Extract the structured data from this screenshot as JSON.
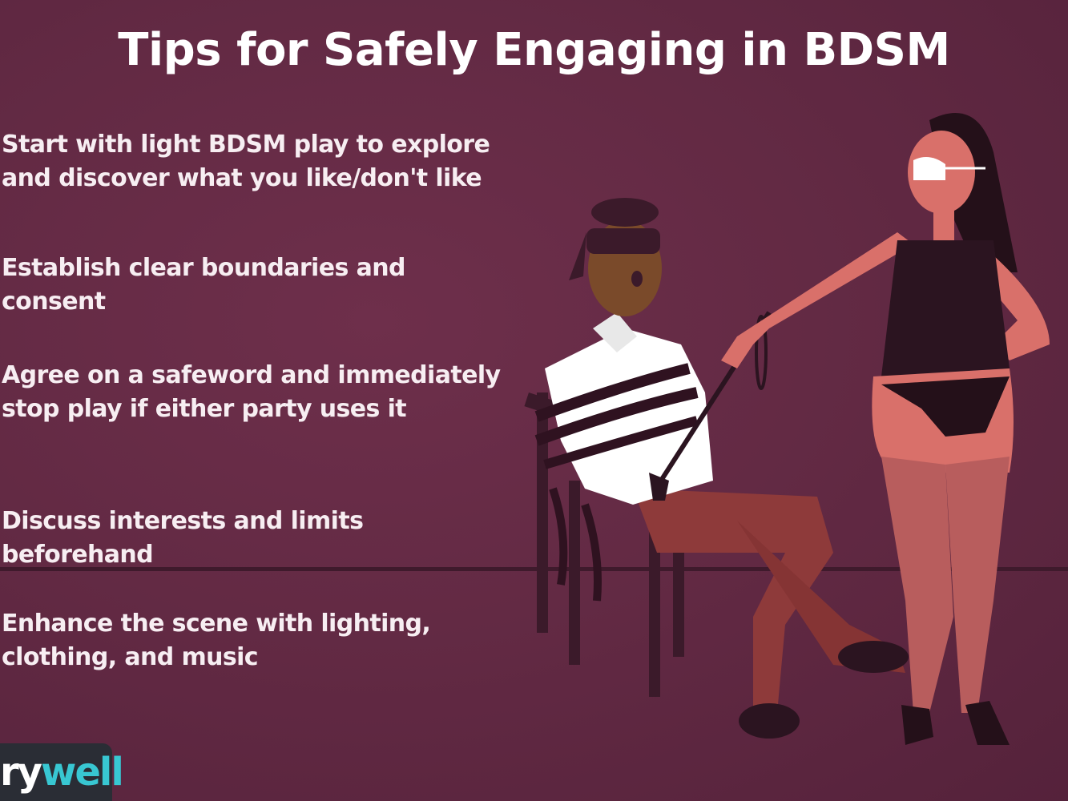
{
  "title": "Tips for Safely Engaging in BDSM",
  "tips": [
    {
      "line1": "Start with light BDSM play to explore",
      "line2": "and discover what you like/don't like"
    },
    {
      "line1": "Establish clear boundaries and consent",
      "line2": ""
    },
    {
      "line1": "Agree on a safeword and immediately",
      "line2": "stop play if either party uses it"
    },
    {
      "line1": "Discuss interests and limits beforehand",
      "line2": ""
    },
    {
      "line1": "Enhance the scene with lighting,",
      "line2": "clothing, and music"
    }
  ],
  "logo": {
    "prefix": "ry",
    "accent": "well"
  },
  "colors": {
    "background": "#632a44",
    "floor_line": "#3f1a2c",
    "text": "#ffffff",
    "logo_accent": "#38c7d2",
    "logo_box": "#2a2d35"
  },
  "illustration": {
    "name": "bdsm-scene-illustration",
    "description_icons": [
      "blindfolded-man-on-chair-icon",
      "rope-icon",
      "riding-crop-icon",
      "masked-woman-icon"
    ]
  }
}
